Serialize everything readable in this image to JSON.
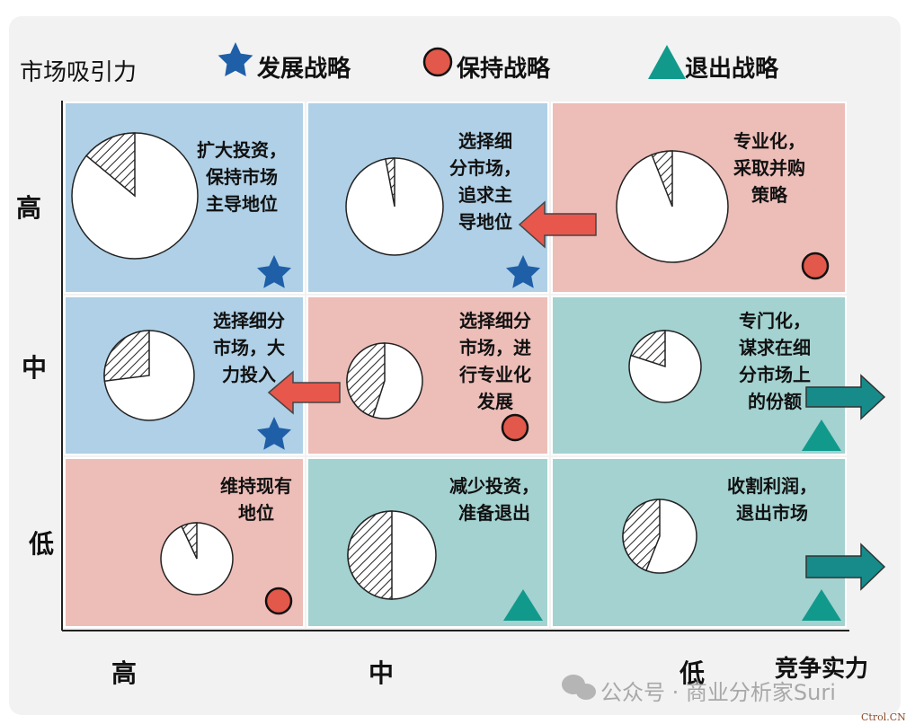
{
  "y_axis_title": "市场吸引力",
  "x_axis_title": "竞争实力",
  "legend": [
    {
      "shape": "star",
      "label": "发展战略",
      "color": "#1f5fa8"
    },
    {
      "shape": "circle",
      "label": "保持战略",
      "color": "#e2584a"
    },
    {
      "shape": "triangle",
      "label": "退出战略",
      "color": "#119a8c"
    }
  ],
  "row_labels": [
    "高",
    "中",
    "低"
  ],
  "col_labels": [
    "高",
    "中",
    "低"
  ],
  "colors": {
    "blue": "#afd0e6",
    "pink": "#edbdb8",
    "teal": "#a3d2d0",
    "arrow_red": "#e8574b",
    "arrow_teal": "#168b8a"
  },
  "cells": [
    {
      "id": "r1c1",
      "text": "扩大投资，\n保持市场\n主导地位",
      "strategy": "star",
      "hatch_share": 0.14
    },
    {
      "id": "r1c2",
      "text": "选择细\n分市场，\n追求主\n导地位",
      "strategy": "star",
      "hatch_share": 0.03
    },
    {
      "id": "r1c3",
      "text": "专业化，\n采取并购\n策略",
      "strategy": "circle",
      "hatch_share": 0.06
    },
    {
      "id": "r2c1",
      "text": "选择细分\n市场，大\n力投入",
      "strategy": "star",
      "hatch_share": 0.27
    },
    {
      "id": "r2c2",
      "text": "选择细分\n市场，进\n行专业化\n发展",
      "strategy": "circle",
      "hatch_share": 0.45
    },
    {
      "id": "r2c3",
      "text": "专门化，\n谋求在细\n分市场上\n的份额",
      "strategy": "triangle",
      "hatch_share": 0.2
    },
    {
      "id": "r3c1",
      "text": "维持现有\n地位",
      "strategy": "circle",
      "hatch_share": 0.07
    },
    {
      "id": "r3c2",
      "text": "减少投资，\n准备退出",
      "strategy": "triangle",
      "hatch_share": 0.5
    },
    {
      "id": "r3c3",
      "text": "收割利润，\n退出市场",
      "strategy": "triangle",
      "hatch_share": 0.44
    }
  ],
  "watermark": "公众号 · 商业分析家Suri",
  "source_mark": "Ctrol.CN"
}
